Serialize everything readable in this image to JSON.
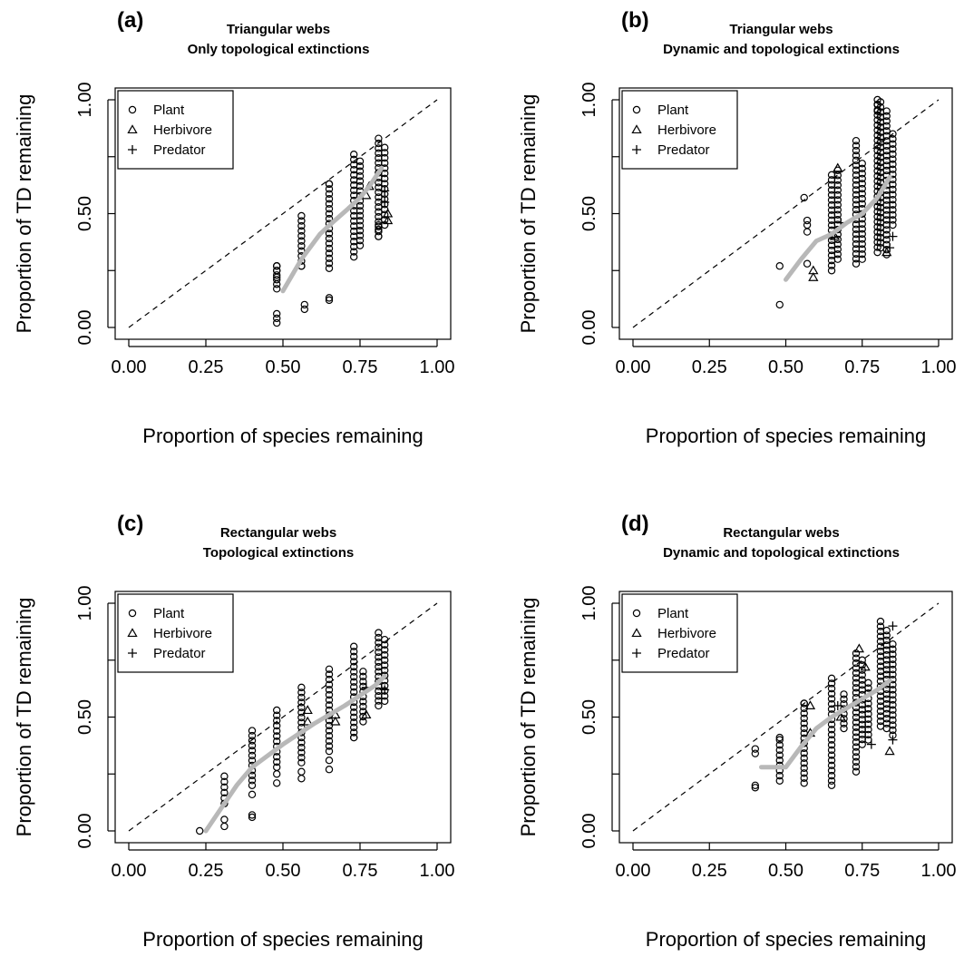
{
  "colors": {
    "trend": "#b8b8b8",
    "points": "#000000",
    "reference_line": "#000000"
  },
  "chart_data": [
    {
      "type": "scatter",
      "panel": "(a)",
      "title": "Triangular webs",
      "subtitle": "Only topological extinctions",
      "xlabel": "Proportion of species remaining",
      "ylabel": "Proportion of TD remaining",
      "xlim": [
        0,
        1
      ],
      "ylim": [
        0,
        1
      ],
      "xticks": [
        "0.00",
        "0.25",
        "0.50",
        "0.75",
        "1.00"
      ],
      "yticks": [
        "0.00",
        "0.50",
        "1.00"
      ],
      "grid": false,
      "legend": {
        "placement": "top-left",
        "entries": [
          "Plant",
          "Herbivore",
          "Predator"
        ]
      },
      "reference_line": {
        "style": "dashed",
        "from": [
          0,
          0
        ],
        "to": [
          1,
          1
        ]
      },
      "trend": {
        "x": [
          0.5,
          0.56,
          0.62,
          0.66,
          0.71,
          0.75,
          0.78,
          0.82
        ],
        "y": [
          0.16,
          0.3,
          0.41,
          0.46,
          0.52,
          0.57,
          0.62,
          0.7
        ]
      },
      "columns": [
        {
          "x": 0.48,
          "lo": 0.17,
          "hi": 0.27
        },
        {
          "x": 0.56,
          "lo": 0.27,
          "hi": 0.49
        },
        {
          "x": 0.65,
          "lo": 0.26,
          "hi": 0.63
        },
        {
          "x": 0.73,
          "lo": 0.31,
          "hi": 0.76
        },
        {
          "x": 0.75,
          "lo": 0.36,
          "hi": 0.73
        },
        {
          "x": 0.81,
          "lo": 0.4,
          "hi": 0.83
        },
        {
          "x": 0.83,
          "lo": 0.45,
          "hi": 0.79
        }
      ],
      "points": [
        {
          "x": 0.48,
          "y": 0.02,
          "group": "Plant"
        },
        {
          "x": 0.48,
          "y": 0.04,
          "group": "Plant"
        },
        {
          "x": 0.48,
          "y": 0.06,
          "group": "Plant"
        },
        {
          "x": 0.48,
          "y": 0.22,
          "group": "Plant"
        },
        {
          "x": 0.48,
          "y": 0.25,
          "group": "Plant"
        },
        {
          "x": 0.48,
          "y": 0.27,
          "group": "Plant"
        },
        {
          "x": 0.57,
          "y": 0.08,
          "group": "Plant"
        },
        {
          "x": 0.57,
          "y": 0.1,
          "group": "Plant"
        },
        {
          "x": 0.56,
          "y": 0.27,
          "group": "Plant"
        },
        {
          "x": 0.65,
          "y": 0.12,
          "group": "Plant"
        },
        {
          "x": 0.65,
          "y": 0.13,
          "group": "Plant"
        },
        {
          "x": 0.65,
          "y": 0.63,
          "group": "Plant"
        },
        {
          "x": 0.81,
          "y": 0.4,
          "group": "Plant"
        },
        {
          "x": 0.81,
          "y": 0.43,
          "group": "Plant"
        },
        {
          "x": 0.81,
          "y": 0.45,
          "group": "Plant"
        },
        {
          "x": 0.77,
          "y": 0.58,
          "group": "Herbivore"
        },
        {
          "x": 0.78,
          "y": 0.62,
          "group": "Herbivore"
        },
        {
          "x": 0.84,
          "y": 0.47,
          "group": "Herbivore"
        },
        {
          "x": 0.84,
          "y": 0.5,
          "group": "Herbivore"
        },
        {
          "x": 0.83,
          "y": 0.55,
          "group": "Predator"
        },
        {
          "x": 0.83,
          "y": 0.6,
          "group": "Predator"
        }
      ]
    },
    {
      "type": "scatter",
      "panel": "(b)",
      "title": "Triangular webs",
      "subtitle": "Dynamic and topological extinctions",
      "xlabel": "Proportion of species remaining",
      "ylabel": "Proportion of TD remaining",
      "xlim": [
        0,
        1
      ],
      "ylim": [
        0,
        1
      ],
      "xticks": [
        "0.00",
        "0.25",
        "0.50",
        "0.75",
        "1.00"
      ],
      "yticks": [
        "0.00",
        "0.50",
        "1.00"
      ],
      "grid": false,
      "legend": {
        "placement": "top-left",
        "entries": [
          "Plant",
          "Herbivore",
          "Predator"
        ]
      },
      "reference_line": {
        "style": "dashed",
        "from": [
          0,
          0
        ],
        "to": [
          1,
          1
        ]
      },
      "trend": {
        "x": [
          0.5,
          0.55,
          0.6,
          0.65,
          0.7,
          0.75,
          0.8,
          0.84
        ],
        "y": [
          0.21,
          0.3,
          0.38,
          0.41,
          0.46,
          0.5,
          0.57,
          0.66
        ]
      },
      "columns": [
        {
          "x": 0.65,
          "lo": 0.25,
          "hi": 0.67
        },
        {
          "x": 0.67,
          "lo": 0.3,
          "hi": 0.69
        },
        {
          "x": 0.73,
          "lo": 0.28,
          "hi": 0.82
        },
        {
          "x": 0.75,
          "lo": 0.3,
          "hi": 0.72
        },
        {
          "x": 0.8,
          "lo": 0.33,
          "hi": 1.0
        },
        {
          "x": 0.81,
          "lo": 0.35,
          "hi": 0.99
        },
        {
          "x": 0.83,
          "lo": 0.32,
          "hi": 0.95
        },
        {
          "x": 0.85,
          "lo": 0.45,
          "hi": 0.85
        }
      ],
      "points": [
        {
          "x": 0.48,
          "y": 0.1,
          "group": "Plant"
        },
        {
          "x": 0.48,
          "y": 0.27,
          "group": "Plant"
        },
        {
          "x": 0.56,
          "y": 0.57,
          "group": "Plant"
        },
        {
          "x": 0.57,
          "y": 0.28,
          "group": "Plant"
        },
        {
          "x": 0.57,
          "y": 0.42,
          "group": "Plant"
        },
        {
          "x": 0.57,
          "y": 0.45,
          "group": "Plant"
        },
        {
          "x": 0.57,
          "y": 0.47,
          "group": "Plant"
        },
        {
          "x": 0.59,
          "y": 0.22,
          "group": "Herbivore"
        },
        {
          "x": 0.59,
          "y": 0.25,
          "group": "Herbivore"
        },
        {
          "x": 0.67,
          "y": 0.7,
          "group": "Herbivore"
        },
        {
          "x": 0.66,
          "y": 0.4,
          "group": "Herbivore"
        },
        {
          "x": 0.68,
          "y": 0.46,
          "group": "Predator"
        },
        {
          "x": 0.83,
          "y": 0.33,
          "group": "Herbivore"
        },
        {
          "x": 0.84,
          "y": 0.35,
          "group": "Predator"
        },
        {
          "x": 0.85,
          "y": 0.4,
          "group": "Predator"
        },
        {
          "x": 0.8,
          "y": 0.95,
          "group": "Plant"
        },
        {
          "x": 0.8,
          "y": 0.98,
          "group": "Plant"
        }
      ]
    },
    {
      "type": "scatter",
      "panel": "(c)",
      "title": "Rectangular webs",
      "subtitle": "Topological extinctions",
      "xlabel": "Proportion of species remaining",
      "ylabel": "Proportion of TD remaining",
      "xlim": [
        0,
        1
      ],
      "ylim": [
        0,
        1
      ],
      "xticks": [
        "0.00",
        "0.25",
        "0.50",
        "0.75",
        "1.00"
      ],
      "yticks": [
        "0.00",
        "0.50",
        "1.00"
      ],
      "grid": false,
      "legend": {
        "placement": "top-left",
        "entries": [
          "Plant",
          "Herbivore",
          "Predator"
        ]
      },
      "reference_line": {
        "style": "dashed",
        "from": [
          0,
          0
        ],
        "to": [
          1,
          1
        ]
      },
      "trend": {
        "x": [
          0.25,
          0.3,
          0.35,
          0.4,
          0.5,
          0.6,
          0.7,
          0.8,
          0.83
        ],
        "y": [
          0.0,
          0.1,
          0.2,
          0.28,
          0.38,
          0.47,
          0.55,
          0.64,
          0.68
        ]
      },
      "columns": [
        {
          "x": 0.31,
          "lo": 0.12,
          "hi": 0.24
        },
        {
          "x": 0.4,
          "lo": 0.2,
          "hi": 0.44
        },
        {
          "x": 0.48,
          "lo": 0.28,
          "hi": 0.53
        },
        {
          "x": 0.56,
          "lo": 0.3,
          "hi": 0.63
        },
        {
          "x": 0.65,
          "lo": 0.35,
          "hi": 0.71
        },
        {
          "x": 0.73,
          "lo": 0.41,
          "hi": 0.81
        },
        {
          "x": 0.76,
          "lo": 0.48,
          "hi": 0.7
        },
        {
          "x": 0.81,
          "lo": 0.55,
          "hi": 0.87
        },
        {
          "x": 0.83,
          "lo": 0.57,
          "hi": 0.84
        }
      ],
      "points": [
        {
          "x": 0.23,
          "y": 0.0,
          "group": "Plant"
        },
        {
          "x": 0.31,
          "y": 0.02,
          "group": "Plant"
        },
        {
          "x": 0.31,
          "y": 0.05,
          "group": "Plant"
        },
        {
          "x": 0.4,
          "y": 0.06,
          "group": "Plant"
        },
        {
          "x": 0.4,
          "y": 0.07,
          "group": "Plant"
        },
        {
          "x": 0.4,
          "y": 0.16,
          "group": "Plant"
        },
        {
          "x": 0.48,
          "y": 0.21,
          "group": "Plant"
        },
        {
          "x": 0.48,
          "y": 0.25,
          "group": "Plant"
        },
        {
          "x": 0.56,
          "y": 0.23,
          "group": "Plant"
        },
        {
          "x": 0.56,
          "y": 0.26,
          "group": "Plant"
        },
        {
          "x": 0.65,
          "y": 0.27,
          "group": "Plant"
        },
        {
          "x": 0.65,
          "y": 0.31,
          "group": "Plant"
        },
        {
          "x": 0.73,
          "y": 0.41,
          "group": "Plant"
        },
        {
          "x": 0.58,
          "y": 0.48,
          "group": "Herbivore"
        },
        {
          "x": 0.58,
          "y": 0.53,
          "group": "Herbivore"
        },
        {
          "x": 0.67,
          "y": 0.48,
          "group": "Herbivore"
        },
        {
          "x": 0.67,
          "y": 0.51,
          "group": "Herbivore"
        },
        {
          "x": 0.77,
          "y": 0.51,
          "group": "Herbivore"
        },
        {
          "x": 0.77,
          "y": 0.63,
          "group": "Predator"
        },
        {
          "x": 0.83,
          "y": 0.62,
          "group": "Predator"
        }
      ]
    },
    {
      "type": "scatter",
      "panel": "(d)",
      "title": "Rectangular webs",
      "subtitle": "Dynamic and topological extinctions",
      "xlabel": "Proportion of species remaining",
      "ylabel": "Proportion of TD remaining",
      "xlim": [
        0,
        1
      ],
      "ylim": [
        0,
        1
      ],
      "xticks": [
        "0.00",
        "0.25",
        "0.50",
        "0.75",
        "1.00"
      ],
      "yticks": [
        "0.00",
        "0.50",
        "1.00"
      ],
      "grid": false,
      "legend": {
        "placement": "top-left",
        "entries": [
          "Plant",
          "Herbivore",
          "Predator"
        ]
      },
      "reference_line": {
        "style": "dashed",
        "from": [
          0,
          0
        ],
        "to": [
          1,
          1
        ]
      },
      "trend": {
        "x": [
          0.42,
          0.46,
          0.5,
          0.55,
          0.6,
          0.65,
          0.7,
          0.75,
          0.8,
          0.84
        ],
        "y": [
          0.28,
          0.28,
          0.28,
          0.37,
          0.45,
          0.5,
          0.54,
          0.58,
          0.62,
          0.66
        ]
      },
      "columns": [
        {
          "x": 0.48,
          "lo": 0.22,
          "hi": 0.4
        },
        {
          "x": 0.56,
          "lo": 0.21,
          "hi": 0.56
        },
        {
          "x": 0.65,
          "lo": 0.22,
          "hi": 0.67
        },
        {
          "x": 0.69,
          "lo": 0.45,
          "hi": 0.6
        },
        {
          "x": 0.73,
          "lo": 0.26,
          "hi": 0.78
        },
        {
          "x": 0.75,
          "lo": 0.38,
          "hi": 0.75
        },
        {
          "x": 0.77,
          "lo": 0.4,
          "hi": 0.65
        },
        {
          "x": 0.81,
          "lo": 0.46,
          "hi": 0.92
        },
        {
          "x": 0.83,
          "lo": 0.45,
          "hi": 0.88
        },
        {
          "x": 0.85,
          "lo": 0.42,
          "hi": 0.82
        }
      ],
      "points": [
        {
          "x": 0.4,
          "y": 0.19,
          "group": "Plant"
        },
        {
          "x": 0.4,
          "y": 0.2,
          "group": "Plant"
        },
        {
          "x": 0.4,
          "y": 0.34,
          "group": "Plant"
        },
        {
          "x": 0.4,
          "y": 0.36,
          "group": "Plant"
        },
        {
          "x": 0.48,
          "y": 0.41,
          "group": "Plant"
        },
        {
          "x": 0.56,
          "y": 0.56,
          "group": "Plant"
        },
        {
          "x": 0.65,
          "y": 0.2,
          "group": "Plant"
        },
        {
          "x": 0.58,
          "y": 0.43,
          "group": "Herbivore"
        },
        {
          "x": 0.58,
          "y": 0.55,
          "group": "Herbivore"
        },
        {
          "x": 0.67,
          "y": 0.55,
          "group": "Predator"
        },
        {
          "x": 0.68,
          "y": 0.5,
          "group": "Herbivore"
        },
        {
          "x": 0.74,
          "y": 0.8,
          "group": "Herbivore"
        },
        {
          "x": 0.76,
          "y": 0.72,
          "group": "Herbivore"
        },
        {
          "x": 0.78,
          "y": 0.38,
          "group": "Predator"
        },
        {
          "x": 0.84,
          "y": 0.35,
          "group": "Herbivore"
        },
        {
          "x": 0.85,
          "y": 0.4,
          "group": "Predator"
        },
        {
          "x": 0.85,
          "y": 0.9,
          "group": "Predator"
        }
      ]
    }
  ]
}
